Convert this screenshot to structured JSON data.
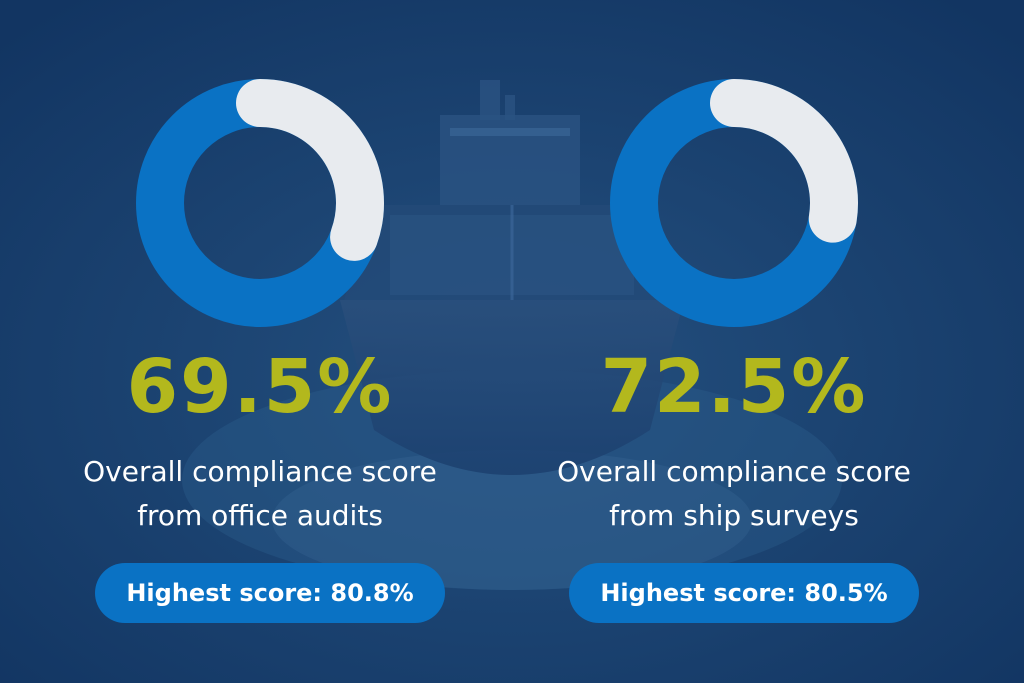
{
  "colors": {
    "background": "#153a6b",
    "ring_filled": "#0a72c4",
    "ring_remaining": "#e8ebef",
    "value_text": "#b3b81d",
    "badge_bg": "#0a72c4"
  },
  "chart_data": [
    {
      "type": "pie",
      "values": [
        69.5,
        30.5
      ],
      "value_label": "69.5%",
      "caption_line1": "Overall compliance score",
      "caption_line2": "from office audits",
      "badge": "Highest score: 80.8%"
    },
    {
      "type": "pie",
      "values": [
        72.5,
        27.5
      ],
      "value_label": "72.5%",
      "caption_line1": "Overall compliance score",
      "caption_line2": "from ship surveys",
      "badge": "Highest score: 80.5%"
    }
  ]
}
